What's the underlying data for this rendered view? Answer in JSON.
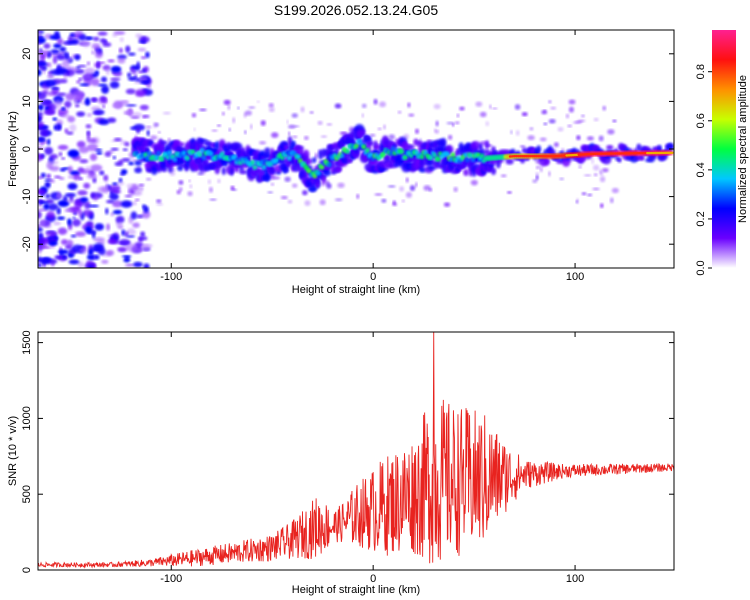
{
  "title": "S199.2026.052.13.24.G05",
  "colors": {
    "snr_line": "#e8231f",
    "blob": "#5a00e0",
    "blob_light": "#d6c2ff"
  },
  "chart_data": [
    {
      "type": "heatmap",
      "name": "spectrogram",
      "xlabel": "Height of straight line (km)",
      "ylabel": "Frequency (Hz)",
      "xlim": [
        -166,
        149
      ],
      "ylim": [
        -25,
        25
      ],
      "xticks": [
        -100,
        0,
        100
      ],
      "xtick_labels": [
        "-100",
        "0",
        "100"
      ],
      "yticks": [
        20,
        10,
        0,
        -10,
        -20
      ],
      "ytick_labels": [
        "20",
        "10",
        "0",
        "-10",
        "-20"
      ],
      "ridge": [
        {
          "x": -116,
          "f": -1.5
        },
        {
          "x": -100,
          "f": -1.5
        },
        {
          "x": -85,
          "f": -1.0
        },
        {
          "x": -70,
          "f": -2.0
        },
        {
          "x": -55,
          "f": -3.5
        },
        {
          "x": -40,
          "f": -1.0
        },
        {
          "x": -30,
          "f": -5.5
        },
        {
          "x": -20,
          "f": -2.0
        },
        {
          "x": -12,
          "f": 0.0
        },
        {
          "x": -7,
          "f": 1.5
        },
        {
          "x": 0,
          "f": -2.0
        },
        {
          "x": 10,
          "f": -0.5
        },
        {
          "x": 20,
          "f": -1.5
        },
        {
          "x": 35,
          "f": -1.5
        },
        {
          "x": 45,
          "f": -2.0
        },
        {
          "x": 55,
          "f": -2.0
        },
        {
          "x": 70,
          "f": -1.5
        },
        {
          "x": 90,
          "f": -1.5
        },
        {
          "x": 110,
          "f": -1.0
        },
        {
          "x": 148,
          "f": -0.8
        }
      ],
      "colorbar": {
        "label": "Normalized spectral amplitude",
        "range": [
          0,
          0.97
        ],
        "ticks": [
          0.0,
          0.2,
          0.4,
          0.6,
          0.8
        ],
        "tick_labels": [
          "0.0",
          "0.2",
          "0.4",
          "0.6",
          "0.8"
        ],
        "colormap": [
          "#ffffff",
          "#6a00ff",
          "#0000ff",
          "#00c8ff",
          "#00ff40",
          "#c8ff00",
          "#ff9000",
          "#ff1010",
          "#ff2090"
        ]
      }
    },
    {
      "type": "line",
      "name": "snr",
      "xlabel": "Height of straight line (km)",
      "ylabel": "SNR (10 * v/v)",
      "xlim": [
        -166,
        149
      ],
      "ylim": [
        0,
        1570
      ],
      "xticks": [
        -100,
        0,
        100
      ],
      "xtick_labels": [
        "-100",
        "0",
        "100"
      ],
      "yticks": [
        0,
        500,
        1000,
        1500
      ],
      "ytick_labels": [
        "0",
        "500",
        "1000",
        "1500"
      ],
      "envelope": [
        {
          "x": -166,
          "base": 30,
          "amp": 30
        },
        {
          "x": -130,
          "base": 30,
          "amp": 30
        },
        {
          "x": -110,
          "base": 40,
          "amp": 50
        },
        {
          "x": -90,
          "base": 60,
          "amp": 110
        },
        {
          "x": -70,
          "base": 90,
          "amp": 140
        },
        {
          "x": -50,
          "base": 120,
          "amp": 180
        },
        {
          "x": -40,
          "base": 160,
          "amp": 250
        },
        {
          "x": -28,
          "base": 220,
          "amp": 420
        },
        {
          "x": -18,
          "base": 260,
          "amp": 220
        },
        {
          "x": -8,
          "base": 300,
          "amp": 420
        },
        {
          "x": 5,
          "base": 320,
          "amp": 650
        },
        {
          "x": 20,
          "base": 380,
          "amp": 800
        },
        {
          "x": 30,
          "base": 420,
          "amp": 1150
        },
        {
          "x": 42,
          "base": 440,
          "amp": 1000
        },
        {
          "x": 55,
          "base": 460,
          "amp": 900
        },
        {
          "x": 65,
          "base": 540,
          "amp": 500
        },
        {
          "x": 75,
          "base": 600,
          "amp": 200
        },
        {
          "x": 95,
          "base": 640,
          "amp": 90
        },
        {
          "x": 149,
          "base": 670,
          "amp": 50
        }
      ],
      "peak": {
        "x": 30,
        "y": 1570
      }
    }
  ]
}
